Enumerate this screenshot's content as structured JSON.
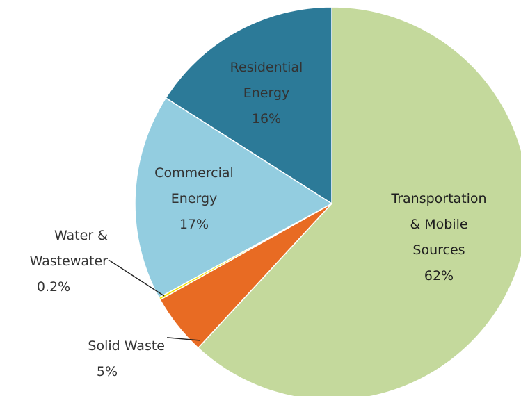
{
  "chart_data": {
    "type": "pie",
    "title": "",
    "slices": [
      {
        "name_lines": [
          "Transportation",
          "& Mobile",
          "Sources"
        ],
        "value": 62,
        "value_label": "62%",
        "color": "#c4d99c"
      },
      {
        "name_lines": [
          "Solid Waste"
        ],
        "value": 5,
        "value_label": "5%",
        "color": "#e86b23"
      },
      {
        "name_lines": [
          "Water &",
          "Wastewater"
        ],
        "value": 0.2,
        "value_label": "0.2%",
        "color": "#f3e600"
      },
      {
        "name_lines": [
          "Commercial",
          "Energy"
        ],
        "value": 17,
        "value_label": "17%",
        "color": "#93cde0"
      },
      {
        "name_lines": [
          "Residential",
          "Energy"
        ],
        "value": 16,
        "value_label": "16%",
        "color": "#2c7a98"
      }
    ],
    "start_angle_deg": 0,
    "direction": "clockwise",
    "slice_border_color": "#ffffff"
  }
}
